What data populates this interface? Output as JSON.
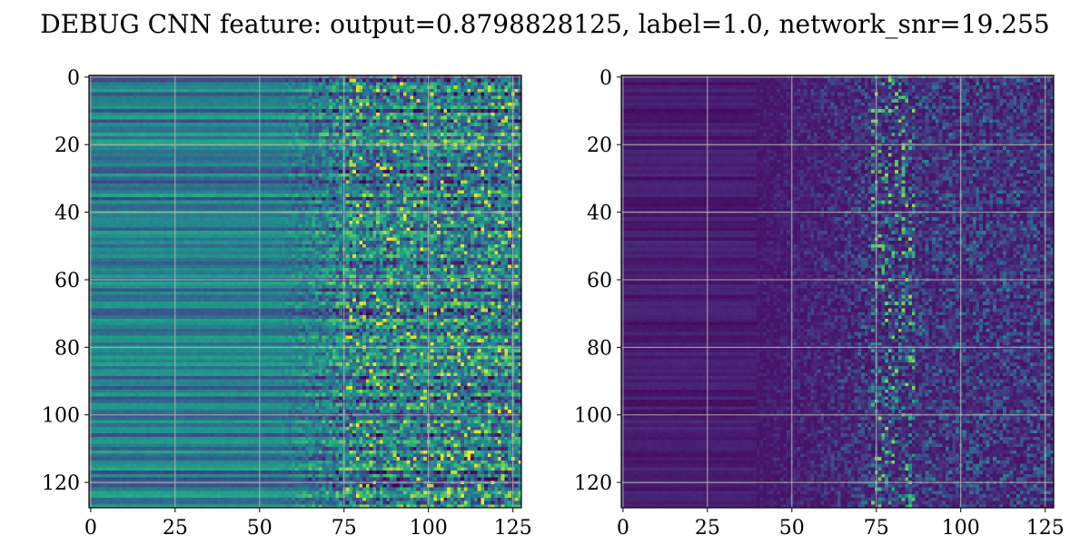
{
  "figure": {
    "title": "DEBUG CNN feature: output=0.8798828125, label=1.0, network_snr=19.255"
  },
  "chart_data": [
    {
      "type": "heatmap",
      "colormap": "viridis",
      "rows": 128,
      "cols": 128,
      "xlim": [
        0,
        127
      ],
      "ylim": [
        127,
        0
      ],
      "x_ticks": [
        0,
        25,
        50,
        75,
        100,
        125
      ],
      "y_ticks": [
        0,
        20,
        40,
        60,
        80,
        100,
        120
      ],
      "grid": true,
      "x_tick_labels": [
        "0",
        "25",
        "50",
        "75",
        "100",
        "125"
      ],
      "y_tick_labels": [
        "0",
        "20",
        "40",
        "60",
        "80",
        "100",
        "120"
      ]
    },
    {
      "type": "heatmap",
      "colormap": "viridis",
      "rows": 128,
      "cols": 128,
      "xlim": [
        0,
        127
      ],
      "ylim": [
        127,
        0
      ],
      "x_ticks": [
        0,
        25,
        50,
        75,
        100,
        125
      ],
      "y_ticks": [
        0,
        20,
        40,
        60,
        80,
        100,
        120
      ],
      "grid": true,
      "x_tick_labels": [
        "0",
        "25",
        "50",
        "75",
        "100",
        "125"
      ],
      "y_tick_labels": [
        "0",
        "20",
        "40",
        "60",
        "80",
        "100",
        "120"
      ]
    }
  ]
}
